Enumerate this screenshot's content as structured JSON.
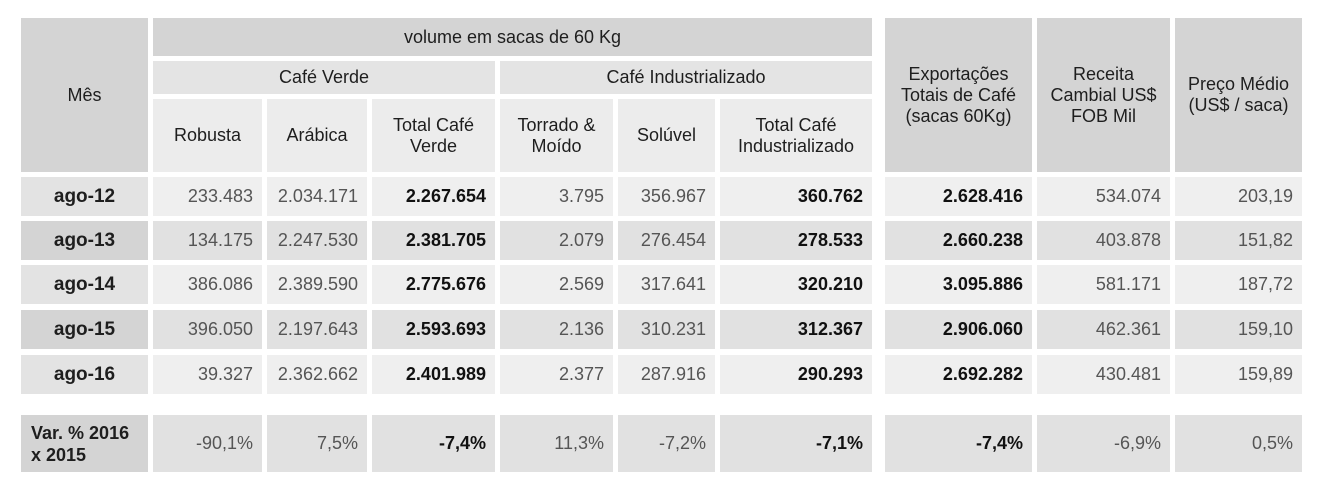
{
  "chart_data": {
    "type": "table",
    "header": {
      "mes": "Mês",
      "volume_group": "volume em sacas de 60 Kg",
      "cafe_verde": "Café Verde",
      "cafe_industrializado": "Café Industrializado",
      "robusta": "Robusta",
      "arabica": "Arábica",
      "total_verde": "Total Café Verde",
      "torrado": "Torrado & Moído",
      "soluvel": "Solúvel",
      "total_industrializado": "Total Café Industrializado",
      "exportacoes": "Exportações Totais de Café (sacas 60Kg)",
      "receita": "Receita Cambial US$ FOB Mil",
      "preco": "Preço Médio (US$ / saca)"
    },
    "rows": [
      {
        "mes": "ago-12",
        "robusta": "233.483",
        "arabica": "2.034.171",
        "total_verde": "2.267.654",
        "torrado": "3.795",
        "soluvel": "356.967",
        "total_industrializado": "360.762",
        "exportacoes": "2.628.416",
        "receita": "534.074",
        "preco": "203,19"
      },
      {
        "mes": "ago-13",
        "robusta": "134.175",
        "arabica": "2.247.530",
        "total_verde": "2.381.705",
        "torrado": "2.079",
        "soluvel": "276.454",
        "total_industrializado": "278.533",
        "exportacoes": "2.660.238",
        "receita": "403.878",
        "preco": "151,82"
      },
      {
        "mes": "ago-14",
        "robusta": "386.086",
        "arabica": "2.389.590",
        "total_verde": "2.775.676",
        "torrado": "2.569",
        "soluvel": "317.641",
        "total_industrializado": "320.210",
        "exportacoes": "3.095.886",
        "receita": "581.171",
        "preco": "187,72"
      },
      {
        "mes": "ago-15",
        "robusta": "396.050",
        "arabica": "2.197.643",
        "total_verde": "2.593.693",
        "torrado": "2.136",
        "soluvel": "310.231",
        "total_industrializado": "312.367",
        "exportacoes": "2.906.060",
        "receita": "462.361",
        "preco": "159,10"
      },
      {
        "mes": "ago-16",
        "robusta": "39.327",
        "arabica": "2.362.662",
        "total_verde": "2.401.989",
        "torrado": "2.377",
        "soluvel": "287.916",
        "total_industrializado": "290.293",
        "exportacoes": "2.692.282",
        "receita": "430.481",
        "preco": "159,89"
      }
    ],
    "variation": {
      "label": "Var. % 2016 x 2015",
      "robusta": "-90,1%",
      "arabica": "7,5%",
      "total_verde": "-7,4%",
      "torrado": "11,3%",
      "soluvel": "-7,2%",
      "total_industrializado": "-7,1%",
      "exportacoes": "-7,4%",
      "receita": "-6,9%",
      "preco": "0,5%"
    }
  }
}
